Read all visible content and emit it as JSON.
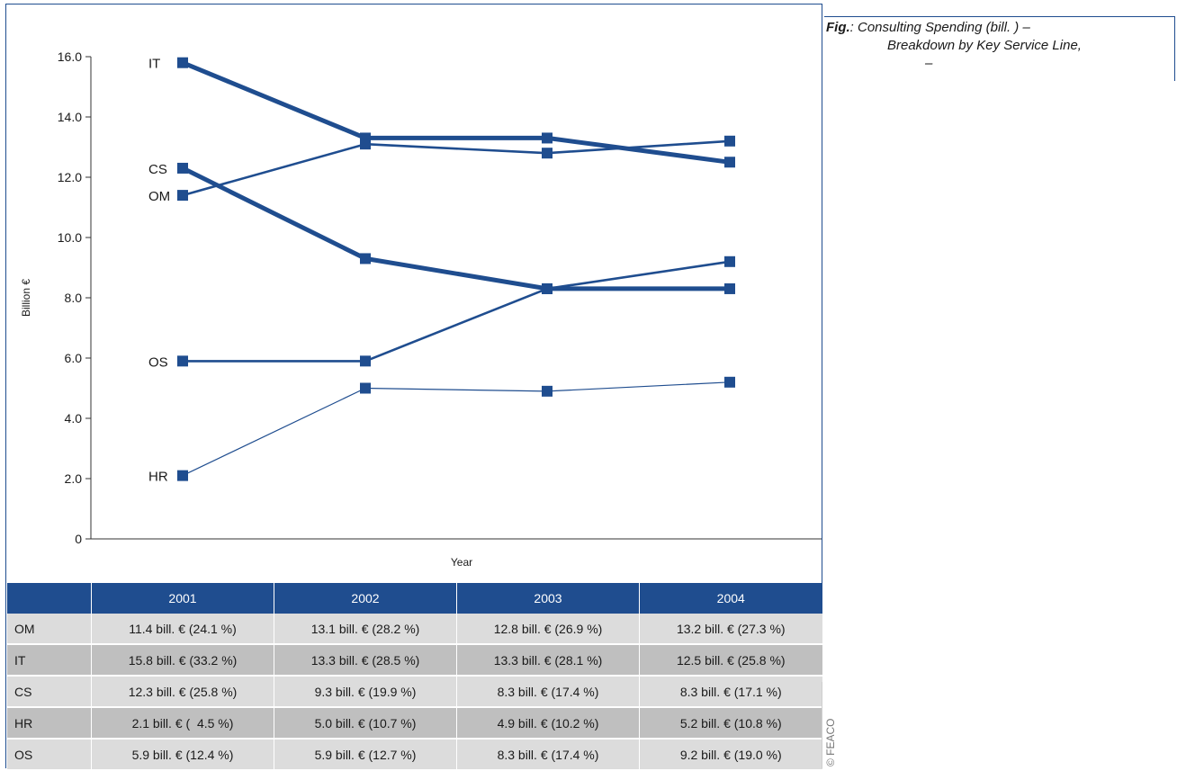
{
  "caption": {
    "fig_label": "Fig.",
    "line1": ": Consulting Spending (bill.   ) –",
    "line2": "Breakdown by Key Service Line,",
    "line3": "–"
  },
  "source": "© FEACO",
  "table": {
    "headers": [
      "",
      "2001",
      "2002",
      "2003",
      "2004"
    ],
    "rows": [
      {
        "label": "OM",
        "cells": [
          "11.4 bill. € (24.1 %)",
          "13.1 bill. € (28.2 %)",
          "12.8 bill. € (26.9 %)",
          "13.2 bill. € (27.3 %)"
        ]
      },
      {
        "label": "IT",
        "cells": [
          "15.8 bill. € (33.2 %)",
          "13.3 bill. € (28.5 %)",
          "13.3 bill. € (28.1 %)",
          "12.5 bill. € (25.8 %)"
        ]
      },
      {
        "label": "CS",
        "cells": [
          "12.3 bill. € (25.8 %)",
          "9.3 bill. € (19.9 %)",
          "8.3 bill. € (17.4 %)",
          "8.3 bill. € (17.1 %)"
        ]
      },
      {
        "label": "HR",
        "cells": [
          "2.1 bill. € (  4.5 %)",
          "5.0 bill. € (10.7 %)",
          "4.9 bill. € (10.2 %)",
          "5.2 bill. € (10.8 %)"
        ]
      },
      {
        "label": "OS",
        "cells": [
          "5.9 bill. € (12.4 %)",
          "5.9 bill. € (12.7 %)",
          "8.3 bill. € (17.4 %)",
          "9.2 bill. € (19.0 %)"
        ]
      }
    ]
  },
  "chart_data": {
    "type": "line",
    "title": "",
    "xlabel": "Year",
    "ylabel": "Billion €",
    "x": [
      2001,
      2002,
      2003,
      2004
    ],
    "ylim": [
      0,
      16
    ],
    "yticks": [
      "0",
      "2.0",
      "4.0",
      "6.0",
      "8.0",
      "10.0",
      "12.0",
      "14.0",
      "16.0"
    ],
    "grid": false,
    "color": "#1f4d8f",
    "series": [
      {
        "name": "IT",
        "values": [
          15.8,
          13.3,
          13.3,
          12.5
        ],
        "weight": "heavy"
      },
      {
        "name": "CS",
        "values": [
          12.3,
          9.3,
          8.3,
          8.3
        ],
        "weight": "heavy"
      },
      {
        "name": "OM",
        "values": [
          11.4,
          13.1,
          12.8,
          13.2
        ],
        "weight": "medium"
      },
      {
        "name": "OS",
        "values": [
          5.9,
          5.9,
          8.3,
          9.2
        ],
        "weight": "medium"
      },
      {
        "name": "HR",
        "values": [
          2.1,
          5.0,
          4.9,
          5.2
        ],
        "weight": "light"
      }
    ]
  }
}
